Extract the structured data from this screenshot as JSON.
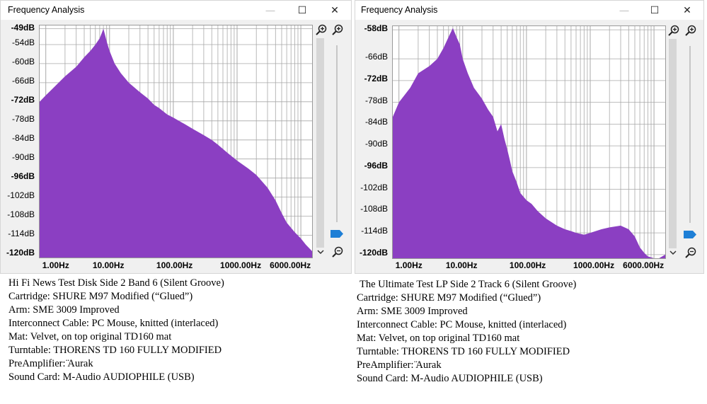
{
  "windows": [
    {
      "title": "Frequency Analysis",
      "y_labels": [
        "-49dB",
        "-54dB",
        "-60dB",
        "-66dB",
        "-72dB",
        "-78dB",
        "-84dB",
        "-90dB",
        "-96dB",
        "-102dB",
        "-108dB",
        "-114dB",
        "-120dB"
      ],
      "x_labels": [
        "1.00Hz",
        "10.00Hz",
        "100.00Hz",
        "1000.00Hz",
        "6000.00Hz"
      ],
      "caption": {
        "title": "Hi Fi News Test Disk Side 2 Band 6 (Silent Groove)",
        "lines": [
          "Cartridge: SHURE M97 Modified (“Glued”)",
          "Arm: SME 3009 Improved",
          "Interconnect Cable: PC Mouse, knitted (interlaced)",
          "Mat: Velvet, on top original TD160 mat",
          "Turntable: THORENS TD 160 FULLY MODIFIED",
          "PreAmplifier: ̈Aurak",
          "Sound Card: M-Audio AUDIOPHILE (USB)"
        ]
      }
    },
    {
      "title": "Frequency Analysis",
      "y_labels": [
        "-58dB",
        "-66dB",
        "-72dB",
        "-78dB",
        "-84dB",
        "-90dB",
        "-96dB",
        "-102dB",
        "-108dB",
        "-114dB",
        "-120dB"
      ],
      "x_labels": [
        "1.00Hz",
        "10.00Hz",
        "100.00Hz",
        "1000.00Hz",
        "6000.00Hz"
      ],
      "caption": {
        "title": "The Ultimate Test LP Side 2 Track 6 (Silent Groove)",
        "lines": [
          "Cartridge: SHURE M97 Modified (“Glued”)",
          "Arm: SME 3009 Improved",
          "Interconnect Cable: PC Mouse, knitted (interlaced)",
          "Mat: Velvet, on top original TD160 mat",
          "Turntable: THORENS TD 160 FULLY MODIFIED",
          "PreAmplifier: ̈Aurak",
          "Sound Card: M-Audio AUDIOPHILE (USB)"
        ]
      }
    }
  ],
  "colors": {
    "fill": "#8b3fc2",
    "grid": "#a8a8a8",
    "slider": "#1e7fd6"
  },
  "chart_data": [
    {
      "type": "area",
      "x_scale": "log",
      "xlim": [
        0.8,
        15000
      ],
      "ylim": [
        -121,
        -48
      ],
      "x": [
        0.8,
        1,
        2,
        3,
        4,
        5,
        6,
        7,
        7.5,
        8,
        8.5,
        9,
        10,
        12,
        15,
        20,
        30,
        40,
        50,
        60,
        80,
        100,
        150,
        200,
        300,
        400,
        500,
        700,
        1000,
        1500,
        2000,
        3000,
        4000,
        5000,
        6000,
        8000,
        10000,
        12000,
        15000
      ],
      "y": [
        -72,
        -70,
        -64,
        -61,
        -58,
        -56,
        -54,
        -52,
        -50.5,
        -49,
        -51,
        -53,
        -56,
        -60,
        -63,
        -66,
        -69,
        -71,
        -73,
        -74,
        -76,
        -77,
        -79,
        -80.5,
        -82.5,
        -84,
        -85.5,
        -88,
        -90.5,
        -93,
        -95,
        -99,
        -103,
        -107,
        -110,
        -113,
        -115,
        -117,
        -119
      ]
    },
    {
      "type": "area",
      "x_scale": "log",
      "xlim": [
        0.8,
        15000
      ],
      "ylim": [
        -121,
        -57
      ],
      "x": [
        0.8,
        1,
        1.5,
        2,
        3,
        4,
        5,
        6,
        7,
        8,
        9,
        10,
        12,
        15,
        20,
        25,
        30,
        35,
        40,
        45,
        50,
        55,
        60,
        70,
        80,
        100,
        120,
        150,
        200,
        300,
        400,
        500,
        600,
        800,
        1000,
        1500,
        2000,
        3000,
        4000,
        5000,
        6000,
        7000,
        8000,
        10000,
        12000,
        15000
      ],
      "y": [
        -82,
        -78,
        -74,
        -70,
        -68,
        -66,
        -63,
        -60,
        -57.5,
        -60,
        -62,
        -66,
        -70,
        -74,
        -77,
        -80,
        -82,
        -86,
        -84,
        -88,
        -91,
        -94,
        -97,
        -100,
        -103,
        -105,
        -106,
        -108,
        -110,
        -112,
        -113,
        -113.5,
        -114,
        -114.5,
        -114,
        -113,
        -112.5,
        -112,
        -113,
        -115,
        -118,
        -119.5,
        -120.5,
        -121,
        -121,
        -120
      ]
    }
  ]
}
